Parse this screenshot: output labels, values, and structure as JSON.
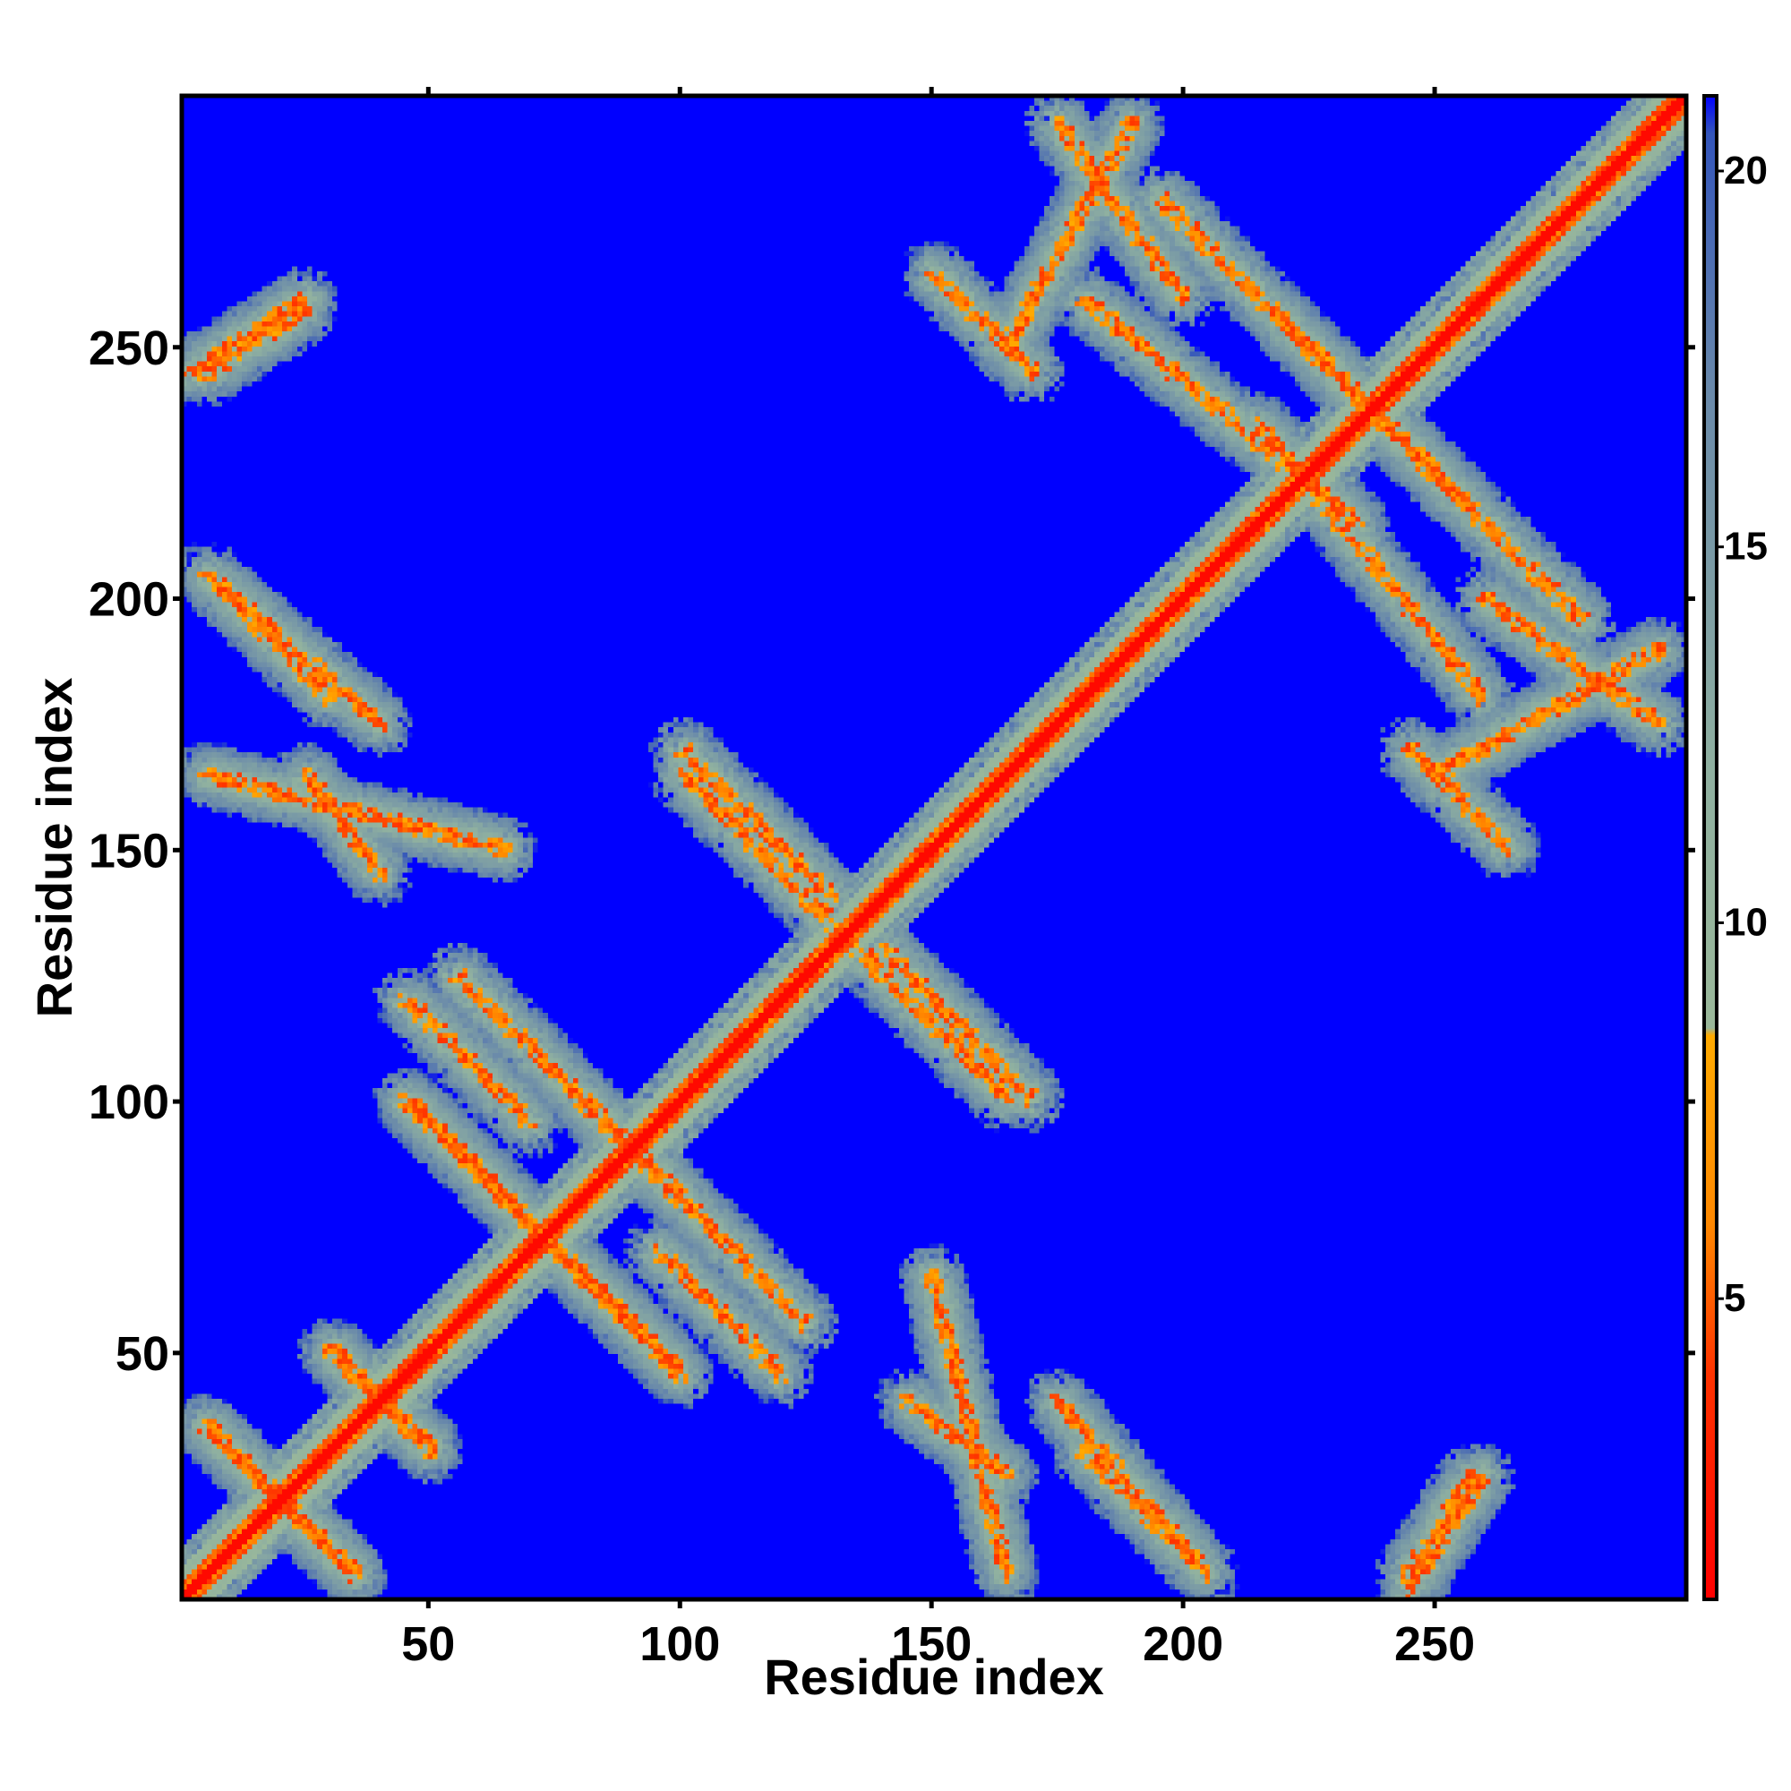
{
  "chart_data": {
    "type": "heatmap",
    "title": "",
    "xlabel": "Residue index",
    "ylabel": "Residue index",
    "n_residues": 300,
    "xlim": [
      1,
      300
    ],
    "ylim": [
      1,
      300
    ],
    "x_ticks": [
      50,
      100,
      150,
      200,
      250
    ],
    "y_ticks": [
      50,
      100,
      150,
      200,
      250
    ],
    "colorbar": {
      "range": [
        1,
        21
      ],
      "ticks": [
        5,
        10,
        15,
        20
      ],
      "color_stops": [
        {
          "value": 1,
          "color": "#ff0000"
        },
        {
          "value": 4,
          "color": "#ff3300"
        },
        {
          "value": 6,
          "color": "#ff8800"
        },
        {
          "value": 8.5,
          "color": "#ffaa00"
        },
        {
          "value": 8.6,
          "color": "#9ab89a"
        },
        {
          "value": 12,
          "color": "#8fb0a0"
        },
        {
          "value": 17,
          "color": "#6a8aaa"
        },
        {
          "value": 20.5,
          "color": "#3355bb"
        },
        {
          "value": 21,
          "color": "#0000ff"
        }
      ]
    },
    "background_value": 21,
    "diagonal_band": {
      "width_residues": 10
    },
    "contact_bands": [
      {
        "anti": true,
        "i1": 5,
        "i2": 35,
        "j1": 35,
        "j2": 5
      },
      {
        "anti": true,
        "i1": 30,
        "i2": 50,
        "j1": 50,
        "j2": 30
      },
      {
        "anti": true,
        "i1": 45,
        "i2": 100,
        "j1": 100,
        "j2": 45
      },
      {
        "anti": true,
        "i1": 55,
        "i2": 100,
        "j1": 125,
        "j2": 80
      },
      {
        "anti": true,
        "i1": 95,
        "i2": 120,
        "j1": 70,
        "j2": 45
      },
      {
        "anti": true,
        "i1": 100,
        "i2": 130,
        "j1": 170,
        "j2": 140
      },
      {
        "anti": true,
        "i1": 135,
        "i2": 165,
        "j1": 130,
        "j2": 100
      },
      {
        "anti": true,
        "i1": 195,
        "i2": 255,
        "j1": 280,
        "j2": 220
      },
      {
        "anti": true,
        "i1": 215,
        "i2": 260,
        "j1": 235,
        "j2": 180
      },
      {
        "anti": false,
        "i1": 5,
        "i2": 25,
        "j1": 245,
        "j2": 258
      },
      {
        "anti": false,
        "i1": 5,
        "i2": 40,
        "j1": 205,
        "j2": 175
      },
      {
        "anti": false,
        "i1": 5,
        "i2": 65,
        "j1": 165,
        "j2": 150
      },
      {
        "anti": false,
        "i1": 145,
        "i2": 165,
        "j1": 40,
        "j2": 25
      },
      {
        "anti": false,
        "i1": 180,
        "i2": 200,
        "j1": 30,
        "j2": 10
      },
      {
        "anti": false,
        "i1": 245,
        "i2": 260,
        "j1": 2,
        "j2": 25
      },
      {
        "anti": false,
        "i1": 150,
        "i2": 170,
        "j1": 265,
        "j2": 245
      },
      {
        "anti": false,
        "i1": 175,
        "i2": 200,
        "j1": 295,
        "j2": 260
      },
      {
        "anti": false,
        "i1": 250,
        "i2": 295,
        "j1": 165,
        "j2": 190
      }
    ]
  }
}
